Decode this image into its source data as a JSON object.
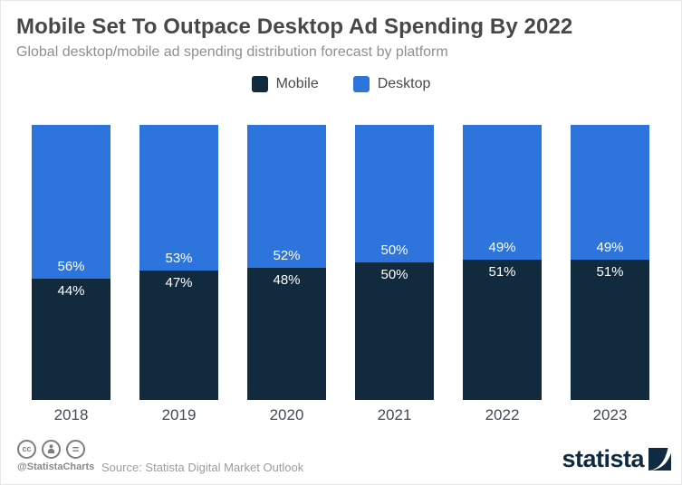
{
  "title": "Mobile Set To Outpace Desktop Ad Spending By 2022",
  "subtitle": "Global desktop/mobile ad spending distribution forecast by platform",
  "legend": [
    {
      "label": "Mobile",
      "color": "#122a3d"
    },
    {
      "label": "Desktop",
      "color": "#2d74dd"
    }
  ],
  "chart_data": {
    "type": "bar",
    "stacked": true,
    "orientation": "vertical",
    "categories": [
      "2018",
      "2019",
      "2020",
      "2021",
      "2022",
      "2023"
    ],
    "series": [
      {
        "name": "Mobile",
        "color": "#122a3d",
        "values": [
          44,
          47,
          48,
          50,
          51,
          51
        ]
      },
      {
        "name": "Desktop",
        "color": "#2d74dd",
        "values": [
          56,
          53,
          52,
          50,
          49,
          49
        ]
      }
    ],
    "value_suffix": "%",
    "ylim": [
      0,
      100
    ],
    "grid": false,
    "legend_position": "top",
    "data_labels": "inside-at-boundary",
    "data_label_color": "#ffffff"
  },
  "footer": {
    "license_icons": [
      "cc-icon",
      "attribution-icon",
      "no-derivatives-icon"
    ],
    "cc_text": "cc",
    "nd_text": "=",
    "handle": "@StatistaCharts",
    "source": "Source: Statista Digital Market Outlook",
    "brand": "statista"
  },
  "colors": {
    "mobile": "#122a3d",
    "desktop": "#2d74dd",
    "title_text": "#484848",
    "subtitle_text": "#8f8f8f",
    "axis_text": "#414b56",
    "footer_text": "#9d9d9d",
    "brand_navy": "#0f2a41"
  }
}
